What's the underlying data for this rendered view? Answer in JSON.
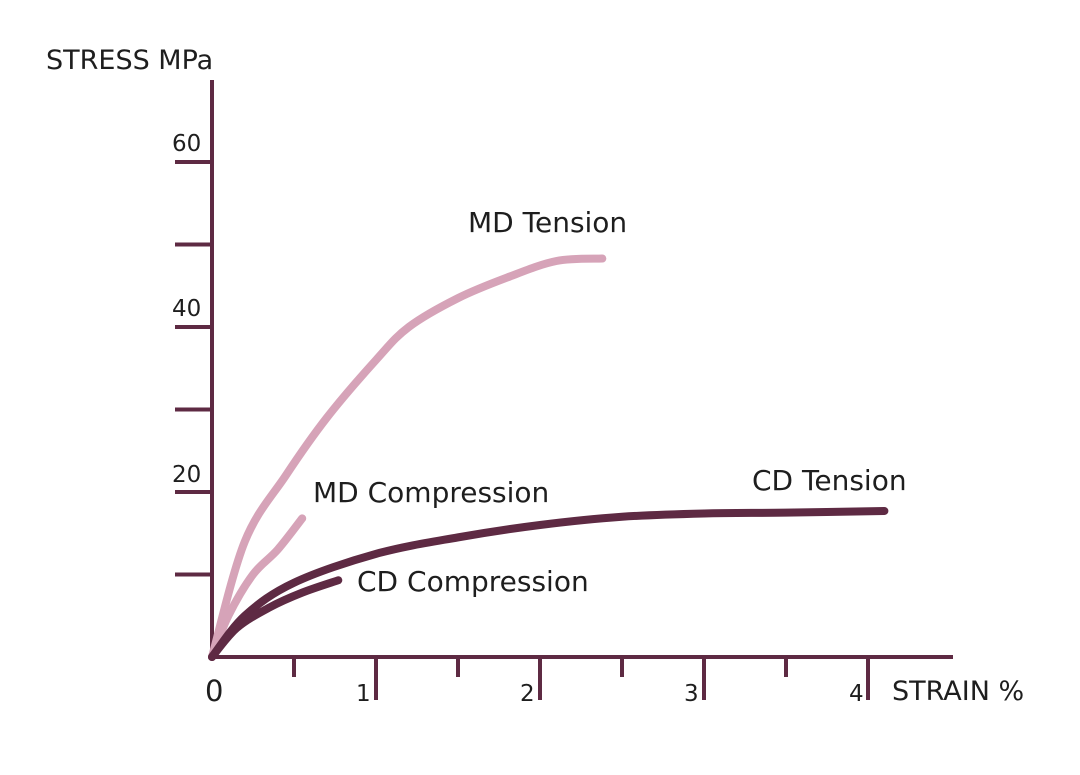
{
  "colors": {
    "axis": "#5e2a43",
    "md": "#d6a3b8",
    "cd": "#5e2a43"
  },
  "chart_data": {
    "type": "line",
    "ylabel": "STRESS MPa",
    "xlabel": "STRAIN %",
    "xlim": [
      0,
      4.5
    ],
    "ylim": [
      0,
      70
    ],
    "x_major_ticks": [
      1,
      2,
      3,
      4
    ],
    "x_minor_ticks": [
      0.5,
      1.5,
      2.5,
      3.5
    ],
    "x_tick_labels": [
      "0",
      "1",
      "2",
      "3",
      "4"
    ],
    "y_major_ticks": [
      20,
      40,
      60
    ],
    "y_minor_ticks": [
      10,
      30,
      50
    ],
    "y_tick_labels": [
      "20",
      "40",
      "60"
    ],
    "grid": false,
    "series": [
      {
        "name": "MD Tension",
        "color": "#d6a3b8",
        "points": [
          [
            0,
            0
          ],
          [
            0.2,
            14
          ],
          [
            0.45,
            22
          ],
          [
            0.7,
            29
          ],
          [
            1.0,
            36
          ],
          [
            1.2,
            40
          ],
          [
            1.5,
            43.5
          ],
          [
            1.8,
            46
          ],
          [
            2.1,
            48
          ],
          [
            2.38,
            48.3
          ]
        ]
      },
      {
        "name": "MD Compression",
        "color": "#d6a3b8",
        "points": [
          [
            0,
            0
          ],
          [
            0.1,
            5
          ],
          [
            0.25,
            10
          ],
          [
            0.4,
            13
          ],
          [
            0.55,
            16.8
          ]
        ]
      },
      {
        "name": "CD Tension",
        "color": "#5e2a43",
        "points": [
          [
            0,
            0
          ],
          [
            0.2,
            5
          ],
          [
            0.5,
            9
          ],
          [
            1.0,
            12.5
          ],
          [
            1.5,
            14.5
          ],
          [
            2.0,
            16
          ],
          [
            2.5,
            17
          ],
          [
            3.0,
            17.4
          ],
          [
            3.5,
            17.5
          ],
          [
            4.1,
            17.7
          ]
        ]
      },
      {
        "name": "CD Compression",
        "color": "#5e2a43",
        "points": [
          [
            0,
            0
          ],
          [
            0.15,
            3.5
          ],
          [
            0.35,
            6
          ],
          [
            0.55,
            7.8
          ],
          [
            0.77,
            9.3
          ]
        ]
      }
    ]
  }
}
